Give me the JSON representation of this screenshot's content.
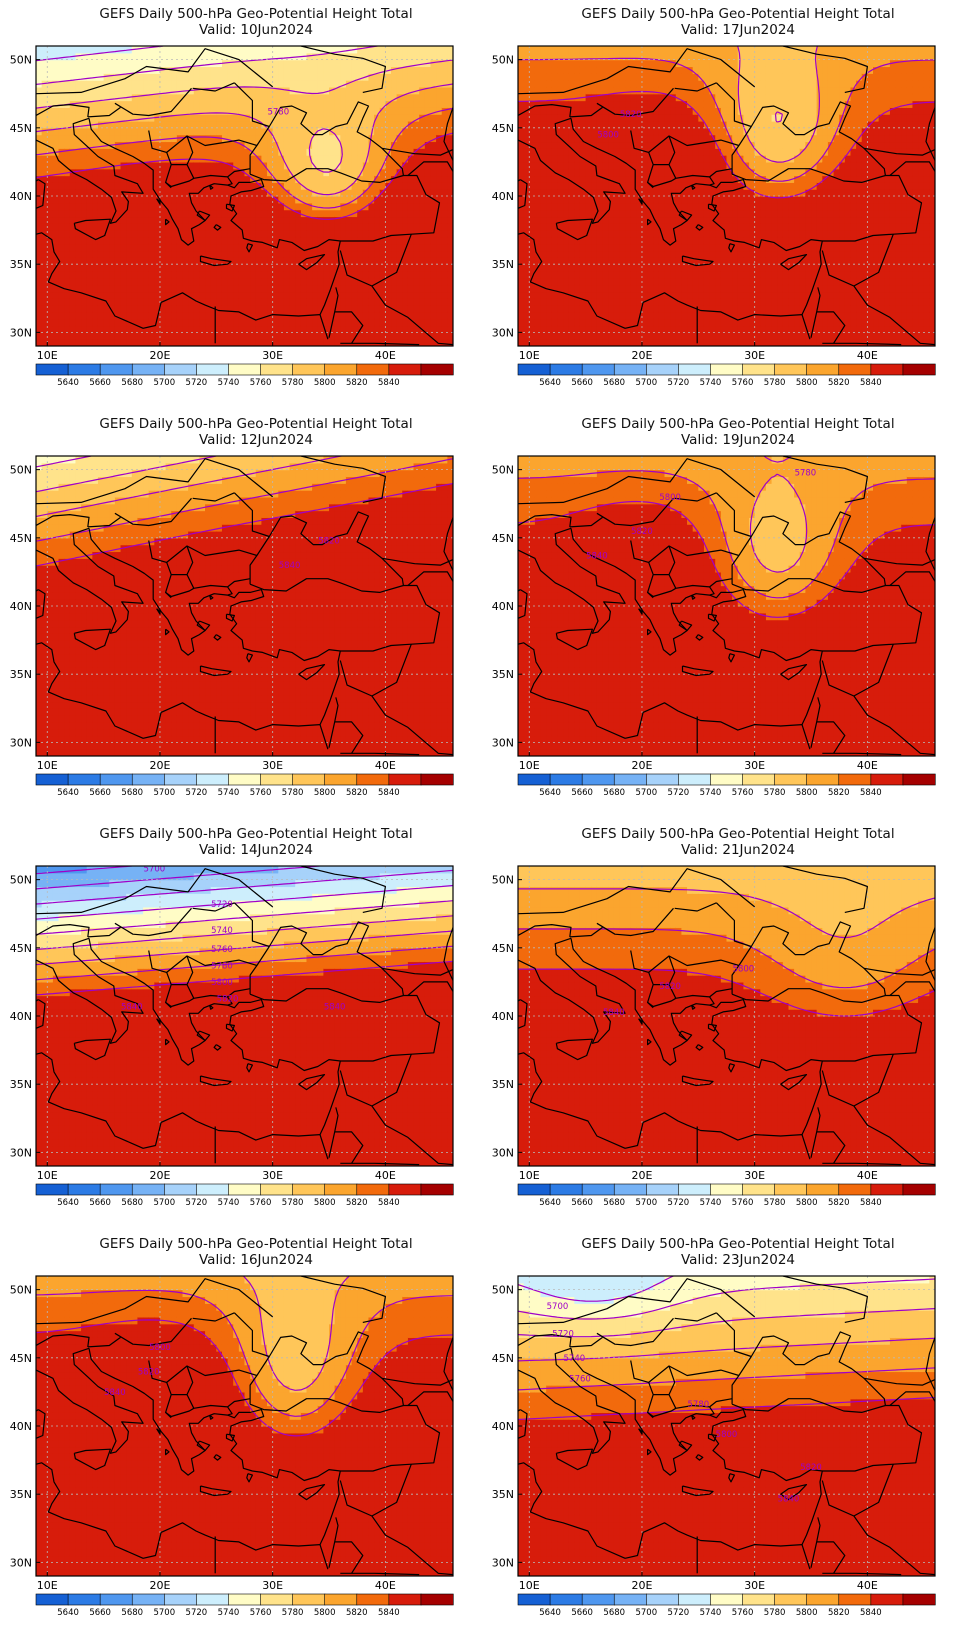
{
  "figure": {
    "title_prefix": "GEFS Daily 500-hPa Geo-Potential Height Total",
    "valid_prefix": "Valid:",
    "units_note": "",
    "colorbar": {
      "levels": [
        5640,
        5660,
        5680,
        5700,
        5720,
        5740,
        5760,
        5780,
        5800,
        5820,
        5840
      ],
      "labels": [
        "5640",
        "5660",
        "5680",
        "5700",
        "5720",
        "5740",
        "5760",
        "5780",
        "5800",
        "5820",
        "5840"
      ],
      "colors": [
        "#1560d4",
        "#2c7be5",
        "#4f97ef",
        "#76b2f5",
        "#a7d2fa",
        "#cdeefc",
        "#fffcc6",
        "#ffe38b",
        "#ffc659",
        "#fba52e",
        "#f26a0c",
        "#d71c0b",
        "#a50000"
      ]
    },
    "axes": {
      "lon_labels": [
        "10E",
        "20E",
        "30E",
        "40E"
      ],
      "lat_labels": [
        "50N",
        "45N",
        "40N",
        "35N",
        "30N"
      ],
      "lon_values": [
        10,
        20,
        30,
        40
      ],
      "lat_values": [
        50,
        45,
        40,
        35,
        30
      ],
      "lon_range": [
        9,
        46
      ],
      "lat_range": [
        29,
        51
      ]
    },
    "contour_color": "#a000c8"
  },
  "panels": [
    {
      "valid_date": "10Jun2024",
      "labels": [
        {
          "text": "5780",
          "lon": 30.5,
          "lat": 46.2
        }
      ]
    },
    {
      "valid_date": "17Jun2024",
      "labels": [
        {
          "text": "5820",
          "lon": 19.0,
          "lat": 46.0
        },
        {
          "text": "5800",
          "lon": 17.0,
          "lat": 44.5
        }
      ]
    },
    {
      "valid_date": "12Jun2024",
      "labels": [
        {
          "text": "5820",
          "lon": 35.0,
          "lat": 44.8
        },
        {
          "text": "5840",
          "lon": 31.5,
          "lat": 43.0
        }
      ]
    },
    {
      "valid_date": "19Jun2024",
      "labels": [
        {
          "text": "5780",
          "lon": 34.5,
          "lat": 49.8
        },
        {
          "text": "5800",
          "lon": 22.5,
          "lat": 48.0
        },
        {
          "text": "5820",
          "lon": 20.0,
          "lat": 45.5
        },
        {
          "text": "5840",
          "lon": 16.0,
          "lat": 43.7
        }
      ]
    },
    {
      "valid_date": "14Jun2024",
      "labels": [
        {
          "text": "5700",
          "lon": 19.5,
          "lat": 50.8
        },
        {
          "text": "5720",
          "lon": 25.5,
          "lat": 48.2
        },
        {
          "text": "5740",
          "lon": 25.5,
          "lat": 46.3
        },
        {
          "text": "5760",
          "lon": 25.5,
          "lat": 44.9
        },
        {
          "text": "5780",
          "lon": 25.5,
          "lat": 43.7
        },
        {
          "text": "5800",
          "lon": 25.5,
          "lat": 42.5
        },
        {
          "text": "5820",
          "lon": 26.0,
          "lat": 41.3
        },
        {
          "text": "5840",
          "lon": 17.5,
          "lat": 40.7
        },
        {
          "text": "5840",
          "lon": 35.5,
          "lat": 40.7
        }
      ]
    },
    {
      "valid_date": "21Jun2024",
      "labels": [
        {
          "text": "5800",
          "lon": 29.0,
          "lat": 43.5
        },
        {
          "text": "5820",
          "lon": 22.5,
          "lat": 42.2
        },
        {
          "text": "5840",
          "lon": 17.5,
          "lat": 40.3
        }
      ]
    },
    {
      "valid_date": "16Jun2024",
      "labels": [
        {
          "text": "5800",
          "lon": 20.0,
          "lat": 45.8
        },
        {
          "text": "5820",
          "lon": 19.0,
          "lat": 44.0
        },
        {
          "text": "5840",
          "lon": 16.0,
          "lat": 42.5
        }
      ]
    },
    {
      "valid_date": "23Jun2024",
      "labels": [
        {
          "text": "5700",
          "lon": 12.5,
          "lat": 48.8
        },
        {
          "text": "5720",
          "lon": 13.0,
          "lat": 46.8
        },
        {
          "text": "5740",
          "lon": 14.0,
          "lat": 45.0
        },
        {
          "text": "5760",
          "lon": 14.5,
          "lat": 43.5
        },
        {
          "text": "5780",
          "lon": 25.0,
          "lat": 41.6
        },
        {
          "text": "5800",
          "lon": 27.5,
          "lat": 39.4
        },
        {
          "text": "5820",
          "lon": 35.0,
          "lat": 37.0
        },
        {
          "text": "5840",
          "lon": 33.0,
          "lat": 34.7
        }
      ]
    }
  ]
}
